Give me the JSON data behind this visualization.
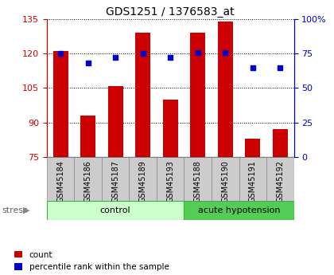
{
  "title": "GDS1251 / 1376583_at",
  "samples": [
    "GSM45184",
    "GSM45186",
    "GSM45187",
    "GSM45189",
    "GSM45193",
    "GSM45188",
    "GSM45190",
    "GSM45191",
    "GSM45192"
  ],
  "count_values": [
    121,
    93,
    106,
    129,
    100,
    129,
    134,
    83,
    87
  ],
  "percentile_values": [
    75,
    68,
    72,
    75,
    72,
    76,
    76,
    65,
    65
  ],
  "ylim_left": [
    75,
    135
  ],
  "ylim_right": [
    0,
    100
  ],
  "yticks_left": [
    75,
    90,
    105,
    120,
    135
  ],
  "yticks_right": [
    0,
    25,
    50,
    75,
    100
  ],
  "bar_color": "#cc0000",
  "dot_color": "#0000cc",
  "control_samples": 5,
  "acute_samples": 4,
  "control_label": "control",
  "acute_label": "acute hypotension",
  "stress_label": "stress",
  "legend_count": "count",
  "legend_percentile": "percentile rank within the sample",
  "control_bg": "#ccffcc",
  "acute_bg": "#55cc55",
  "bg_color": "#ffffff",
  "tick_label_bg": "#cccccc",
  "title_fontsize": 10,
  "axis_fontsize": 8,
  "label_fontsize": 7,
  "group_fontsize": 8
}
